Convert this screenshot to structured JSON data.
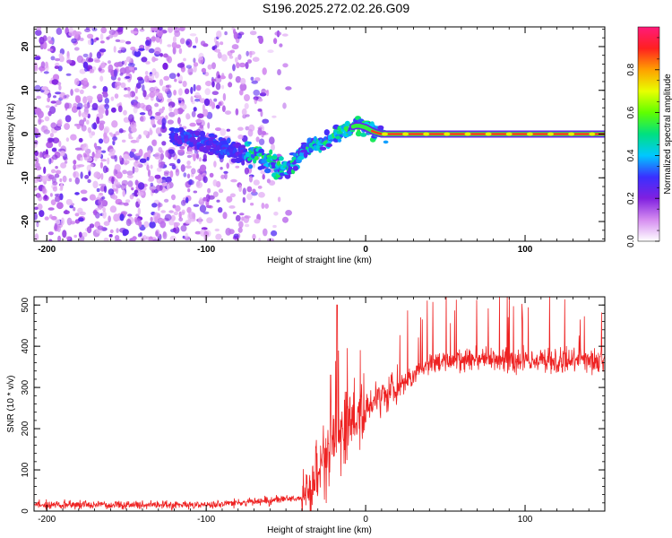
{
  "figure_title": "S196.2025.272.02.26.G09",
  "chart_data": [
    {
      "type": "heatmap",
      "title": "",
      "xlabel": "Height of straight line (km)",
      "ylabel": "Frequency (Hz)",
      "xlim": [
        -208,
        150
      ],
      "ylim": [
        -24.5,
        24.5
      ],
      "xticks": [
        -200,
        -100,
        0,
        100
      ],
      "yticks": [
        -20,
        -10,
        0,
        10,
        20
      ],
      "ridge_x": [
        -110,
        -100,
        -90,
        -80,
        -70,
        -60,
        -55,
        -50,
        -45,
        -40,
        -35,
        -30,
        -25,
        -20,
        -15,
        -10,
        -5,
        0,
        5,
        10,
        150
      ],
      "ridge_y": [
        -1,
        -2,
        -3,
        -4,
        -5,
        -6,
        -7.5,
        -8,
        -7,
        -4,
        -3,
        -2.5,
        -1.5,
        -0.5,
        0.5,
        1.5,
        2,
        1.5,
        0.5,
        0,
        0
      ],
      "colorbar": {
        "label": "Normalized spectral amplitude",
        "range": [
          0,
          1
        ],
        "ticks": [
          0.0,
          0.2,
          0.4,
          0.6,
          0.8
        ],
        "colors": [
          "#ffffff",
          "#d58cf0",
          "#8020e0",
          "#3a30ff",
          "#00c8ff",
          "#00e080",
          "#60ff00",
          "#e8ff00",
          "#ffa000",
          "#ff2020",
          "#ff1a7a"
        ]
      }
    },
    {
      "type": "line",
      "title": "",
      "xlabel": "Height of straight line (km)",
      "ylabel": "SNR (10 * v/v)",
      "xlim": [
        -208,
        150
      ],
      "ylim": [
        0,
        520
      ],
      "xticks": [
        -200,
        -100,
        0,
        100
      ],
      "yticks": [
        0,
        100,
        200,
        300,
        400,
        500
      ],
      "series": [
        {
          "name": "SNR",
          "color": "#ee2222",
          "x": [
            -208,
            -150,
            -100,
            -80,
            -60,
            -50,
            -40,
            -35,
            -30,
            -25,
            -20,
            -15,
            -10,
            -5,
            0,
            10,
            20,
            30,
            40,
            60,
            80,
            100,
            120,
            150
          ],
          "y": [
            15,
            15,
            15,
            20,
            25,
            30,
            30,
            50,
            100,
            150,
            180,
            200,
            220,
            240,
            250,
            270,
            300,
            330,
            360,
            370,
            370,
            365,
            365,
            365
          ]
        }
      ]
    }
  ]
}
